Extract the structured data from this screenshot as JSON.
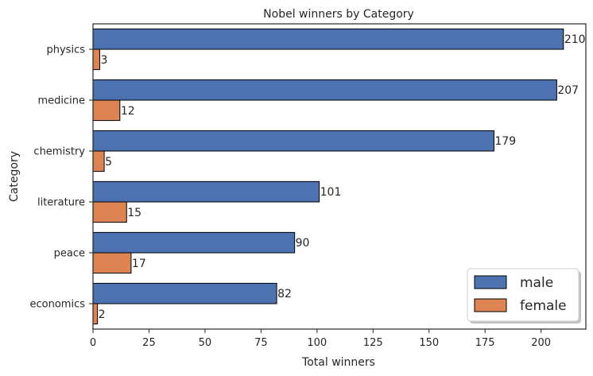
{
  "chart_data": {
    "type": "bar",
    "orientation": "horizontal",
    "title": "Nobel winners by Category",
    "xlabel": "Total winners",
    "ylabel": "Category",
    "categories": [
      "physics",
      "medicine",
      "chemistry",
      "literature",
      "peace",
      "economics"
    ],
    "series": [
      {
        "name": "male",
        "values": [
          210,
          207,
          179,
          101,
          90,
          82
        ],
        "color": "#4c72b0"
      },
      {
        "name": "female",
        "values": [
          3,
          12,
          5,
          15,
          17,
          2
        ],
        "color": "#dd8452"
      }
    ],
    "xlim": [
      0,
      220
    ],
    "xticks": [
      0,
      25,
      50,
      75,
      100,
      125,
      150,
      175,
      200
    ],
    "grid": false,
    "legend_position": "lower right"
  }
}
